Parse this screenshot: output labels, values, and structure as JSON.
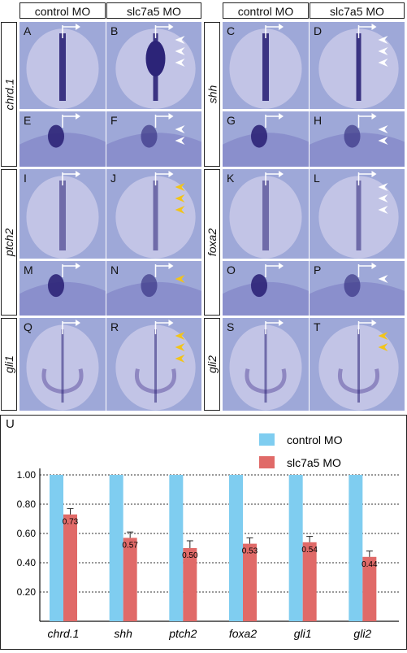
{
  "headers": [
    "control MO",
    "slc7a5 MO",
    "control MO",
    "slc7a5 MO"
  ],
  "gene_labels": [
    "chrd.1",
    "shh",
    "ptch2",
    "foxa2",
    "gli1",
    "gli2"
  ],
  "panel_letters": [
    "A",
    "B",
    "C",
    "D",
    "E",
    "F",
    "G",
    "H",
    "I",
    "J",
    "K",
    "L",
    "M",
    "N",
    "O",
    "P",
    "Q",
    "R",
    "S",
    "T"
  ],
  "chart_panel_letter": "U",
  "colors": {
    "control": "#7fcdf0",
    "slc7a5": "#e06a68",
    "bg_blue": "#9ea8d8",
    "stain": "#2c2478",
    "arrow_white": "#ffffff",
    "arrow_yellow": "#f2c41a"
  },
  "chart_data": {
    "type": "bar",
    "categories": [
      "chrd.1",
      "shh",
      "ptch2",
      "foxa2",
      "gli1",
      "gli2"
    ],
    "series": [
      {
        "name": "control MO",
        "values": [
          1.0,
          1.0,
          1.0,
          1.0,
          1.0,
          1.0
        ],
        "errors": [
          0,
          0,
          0,
          0,
          0,
          0
        ]
      },
      {
        "name": "slc7a5 MO",
        "values": [
          0.73,
          0.57,
          0.5,
          0.53,
          0.54,
          0.44
        ],
        "errors": [
          0.04,
          0.04,
          0.05,
          0.04,
          0.04,
          0.04
        ]
      }
    ],
    "data_labels": [
      "0.73",
      "0.57",
      "0.50",
      "0.53",
      "0.54",
      "0.44"
    ],
    "yticks": [
      "1.00",
      "0.80",
      "0.60",
      "0.40",
      "0.20"
    ],
    "ylim": [
      0,
      1.0
    ],
    "grid": "dotted-horizontal",
    "legend": "top-right"
  }
}
